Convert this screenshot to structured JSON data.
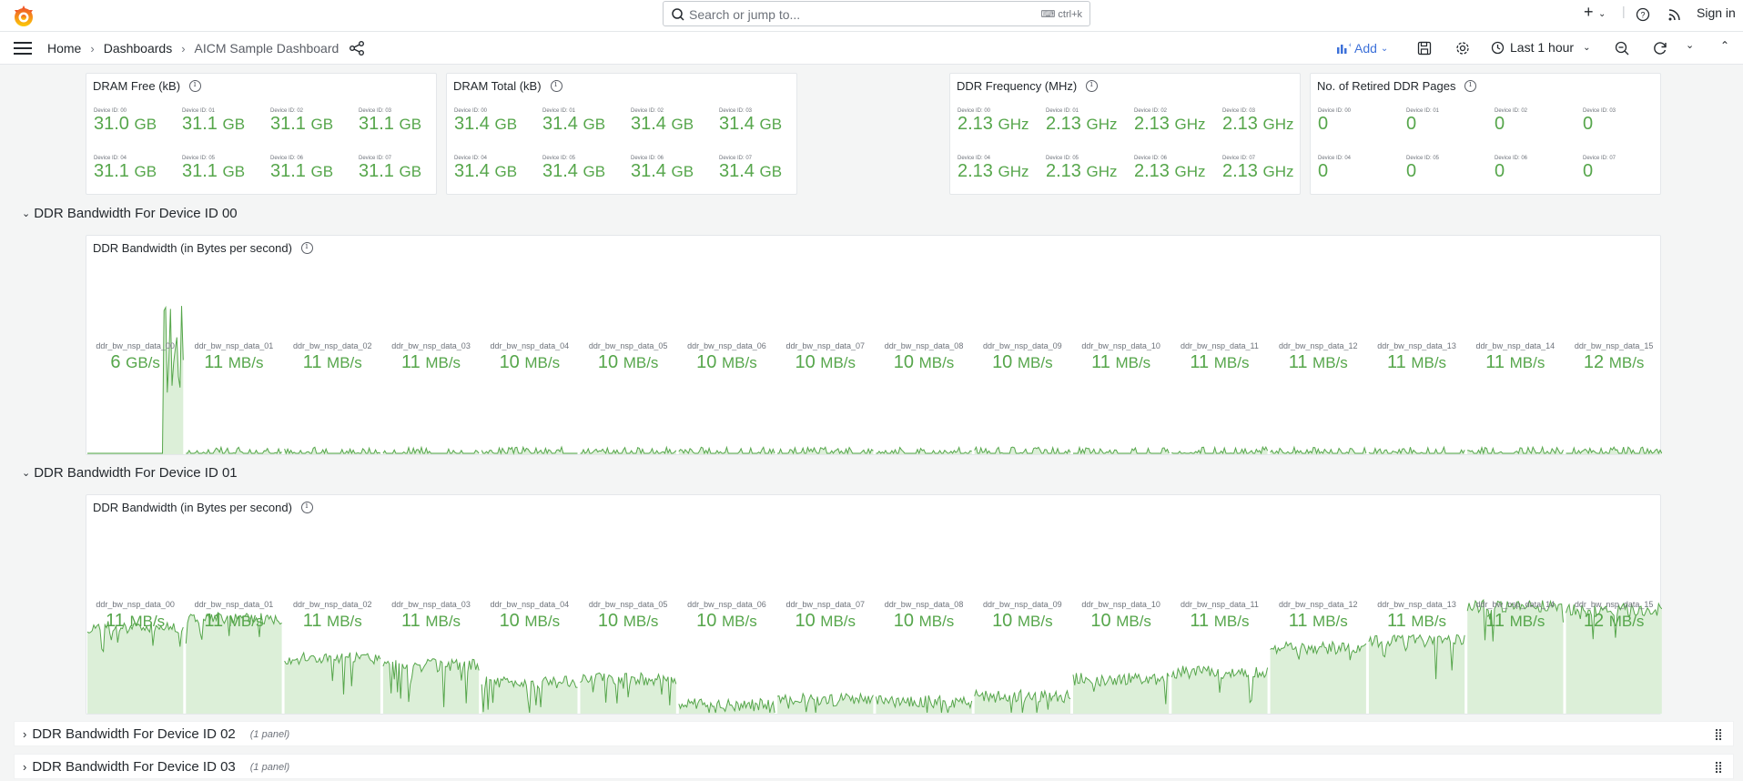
{
  "topbar": {
    "search_placeholder": "Search or jump to...",
    "search_shortcut": "ctrl+k",
    "sign_in": "Sign in"
  },
  "breadcrumb": {
    "home": "Home",
    "dashboards": "Dashboards",
    "current": "AICM Sample Dashboard"
  },
  "toolbar": {
    "add_label": "Add",
    "time_range": "Last 1 hour"
  },
  "stat_panels": [
    {
      "title": "DRAM Free (kB)",
      "devices": [
        {
          "label": "Device ID: 00",
          "value": "31.0",
          "unit": "GB"
        },
        {
          "label": "Device ID: 01",
          "value": "31.1",
          "unit": "GB"
        },
        {
          "label": "Device ID: 02",
          "value": "31.1",
          "unit": "GB"
        },
        {
          "label": "Device ID: 03",
          "value": "31.1",
          "unit": "GB"
        },
        {
          "label": "Device ID: 04",
          "value": "31.1",
          "unit": "GB"
        },
        {
          "label": "Device ID: 05",
          "value": "31.1",
          "unit": "GB"
        },
        {
          "label": "Device ID: 06",
          "value": "31.1",
          "unit": "GB"
        },
        {
          "label": "Device ID: 07",
          "value": "31.1",
          "unit": "GB"
        }
      ]
    },
    {
      "title": "DRAM Total (kB)",
      "devices": [
        {
          "label": "Device ID: 00",
          "value": "31.4",
          "unit": "GB"
        },
        {
          "label": "Device ID: 01",
          "value": "31.4",
          "unit": "GB"
        },
        {
          "label": "Device ID: 02",
          "value": "31.4",
          "unit": "GB"
        },
        {
          "label": "Device ID: 03",
          "value": "31.4",
          "unit": "GB"
        },
        {
          "label": "Device ID: 04",
          "value": "31.4",
          "unit": "GB"
        },
        {
          "label": "Device ID: 05",
          "value": "31.4",
          "unit": "GB"
        },
        {
          "label": "Device ID: 06",
          "value": "31.4",
          "unit": "GB"
        },
        {
          "label": "Device ID: 07",
          "value": "31.4",
          "unit": "GB"
        }
      ]
    },
    {
      "title": "DDR Frequency (MHz)",
      "devices": [
        {
          "label": "Device ID: 00",
          "value": "2.13",
          "unit": "GHz"
        },
        {
          "label": "Device ID: 01",
          "value": "2.13",
          "unit": "GHz"
        },
        {
          "label": "Device ID: 02",
          "value": "2.13",
          "unit": "GHz"
        },
        {
          "label": "Device ID: 03",
          "value": "2.13",
          "unit": "GHz"
        },
        {
          "label": "Device ID: 04",
          "value": "2.13",
          "unit": "GHz"
        },
        {
          "label": "Device ID: 05",
          "value": "2.13",
          "unit": "GHz"
        },
        {
          "label": "Device ID: 06",
          "value": "2.13",
          "unit": "GHz"
        },
        {
          "label": "Device ID: 07",
          "value": "2.13",
          "unit": "GHz"
        }
      ]
    },
    {
      "title": "No. of Retired DDR Pages",
      "devices": [
        {
          "label": "Device ID: 00",
          "value": "0",
          "unit": ""
        },
        {
          "label": "Device ID: 01",
          "value": "0",
          "unit": ""
        },
        {
          "label": "Device ID: 02",
          "value": "0",
          "unit": ""
        },
        {
          "label": "Device ID: 03",
          "value": "0",
          "unit": ""
        },
        {
          "label": "Device ID: 04",
          "value": "0",
          "unit": ""
        },
        {
          "label": "Device ID: 05",
          "value": "0",
          "unit": ""
        },
        {
          "label": "Device ID: 06",
          "value": "0",
          "unit": ""
        },
        {
          "label": "Device ID: 07",
          "value": "0",
          "unit": ""
        }
      ]
    }
  ],
  "rows": [
    {
      "title": "DDR Bandwidth For Device ID 00",
      "panel_title": "DDR Bandwidth (in Bytes per second)",
      "series": [
        {
          "label": "ddr_bw_nsp_data_00",
          "value": "6",
          "unit": "GB/s"
        },
        {
          "label": "ddr_bw_nsp_data_01",
          "value": "11",
          "unit": "MB/s"
        },
        {
          "label": "ddr_bw_nsp_data_02",
          "value": "11",
          "unit": "MB/s"
        },
        {
          "label": "ddr_bw_nsp_data_03",
          "value": "11",
          "unit": "MB/s"
        },
        {
          "label": "ddr_bw_nsp_data_04",
          "value": "10",
          "unit": "MB/s"
        },
        {
          "label": "ddr_bw_nsp_data_05",
          "value": "10",
          "unit": "MB/s"
        },
        {
          "label": "ddr_bw_nsp_data_06",
          "value": "10",
          "unit": "MB/s"
        },
        {
          "label": "ddr_bw_nsp_data_07",
          "value": "10",
          "unit": "MB/s"
        },
        {
          "label": "ddr_bw_nsp_data_08",
          "value": "10",
          "unit": "MB/s"
        },
        {
          "label": "ddr_bw_nsp_data_09",
          "value": "10",
          "unit": "MB/s"
        },
        {
          "label": "ddr_bw_nsp_data_10",
          "value": "11",
          "unit": "MB/s"
        },
        {
          "label": "ddr_bw_nsp_data_11",
          "value": "11",
          "unit": "MB/s"
        },
        {
          "label": "ddr_bw_nsp_data_12",
          "value": "11",
          "unit": "MB/s"
        },
        {
          "label": "ddr_bw_nsp_data_13",
          "value": "11",
          "unit": "MB/s"
        },
        {
          "label": "ddr_bw_nsp_data_14",
          "value": "11",
          "unit": "MB/s"
        },
        {
          "label": "ddr_bw_nsp_data_15",
          "value": "12",
          "unit": "MB/s"
        }
      ]
    },
    {
      "title": "DDR Bandwidth For Device ID 01",
      "panel_title": "DDR Bandwidth (in Bytes per second)",
      "series": [
        {
          "label": "ddr_bw_nsp_data_00",
          "value": "11",
          "unit": "MB/s"
        },
        {
          "label": "ddr_bw_nsp_data_01",
          "value": "11",
          "unit": "MB/s"
        },
        {
          "label": "ddr_bw_nsp_data_02",
          "value": "11",
          "unit": "MB/s"
        },
        {
          "label": "ddr_bw_nsp_data_03",
          "value": "11",
          "unit": "MB/s"
        },
        {
          "label": "ddr_bw_nsp_data_04",
          "value": "10",
          "unit": "MB/s"
        },
        {
          "label": "ddr_bw_nsp_data_05",
          "value": "10",
          "unit": "MB/s"
        },
        {
          "label": "ddr_bw_nsp_data_06",
          "value": "10",
          "unit": "MB/s"
        },
        {
          "label": "ddr_bw_nsp_data_07",
          "value": "10",
          "unit": "MB/s"
        },
        {
          "label": "ddr_bw_nsp_data_08",
          "value": "10",
          "unit": "MB/s"
        },
        {
          "label": "ddr_bw_nsp_data_09",
          "value": "10",
          "unit": "MB/s"
        },
        {
          "label": "ddr_bw_nsp_data_10",
          "value": "10",
          "unit": "MB/s"
        },
        {
          "label": "ddr_bw_nsp_data_11",
          "value": "11",
          "unit": "MB/s"
        },
        {
          "label": "ddr_bw_nsp_data_12",
          "value": "11",
          "unit": "MB/s"
        },
        {
          "label": "ddr_bw_nsp_data_13",
          "value": "11",
          "unit": "MB/s"
        },
        {
          "label": "ddr_bw_nsp_data_14",
          "value": "11",
          "unit": "MB/s"
        },
        {
          "label": "ddr_bw_nsp_data_15",
          "value": "12",
          "unit": "MB/s"
        }
      ],
      "sparkline_levels": [
        0.5,
        0.55,
        0.32,
        0.28,
        0.18,
        0.2,
        0.05,
        0.08,
        0.07,
        0.1,
        0.2,
        0.24,
        0.38,
        0.42,
        0.62,
        0.6
      ]
    }
  ],
  "collapsed_rows": [
    {
      "title": "DDR Bandwidth For Device ID 02",
      "count": "(1 panel)"
    },
    {
      "title": "DDR Bandwidth For Device ID 03",
      "count": "(1 panel)"
    }
  ],
  "colors": {
    "value_green": "#56a64b",
    "fill_green": "#dcefd8",
    "accent_blue": "#3d71d9",
    "logo_orange": "#f46800"
  }
}
